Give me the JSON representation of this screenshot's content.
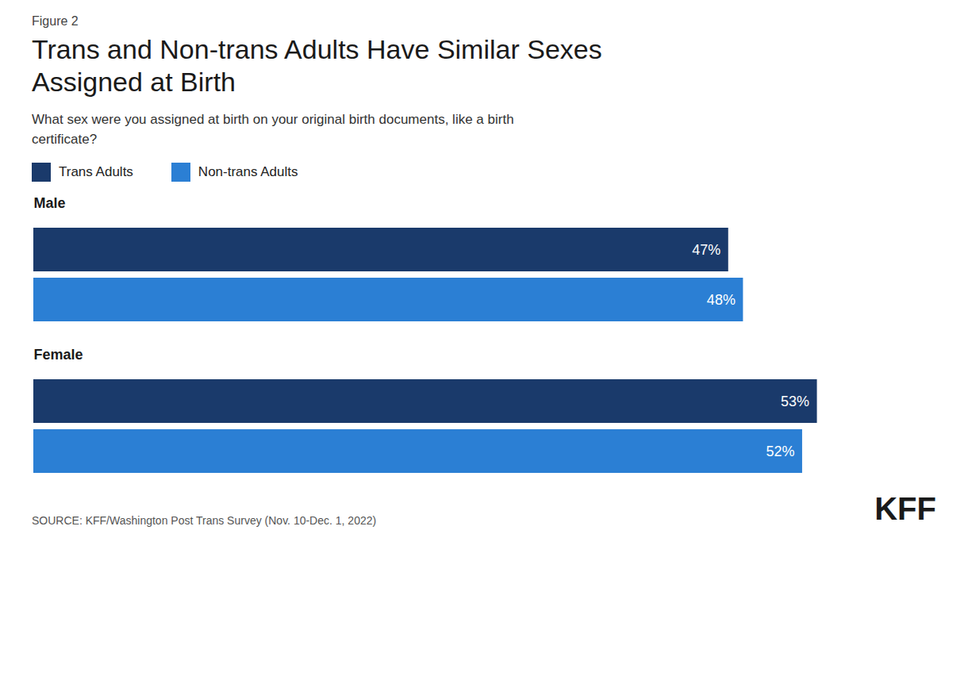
{
  "chart_data": {
    "type": "bar",
    "orientation": "horizontal",
    "figure_label": "Figure 2",
    "title": "Trans and Non-trans Adults Have Similar Sexes\nAssigned at Birth",
    "subtitle": "What sex were you assigned at birth on your original birth documents, like a birth\ncertificate?",
    "source": "SOURCE: KFF/Washington Post Trans Survey (Nov. 10-Dec. 1, 2022)",
    "annotations": [
      "KFF"
    ],
    "categories": [
      "Male",
      "Female"
    ],
    "series": [
      {
        "name": "Trans Adults",
        "color": "#1a3a6b",
        "values": [
          47,
          53
        ],
        "value_labels": [
          "47%",
          "53%"
        ]
      },
      {
        "name": "Non-trans Adults",
        "color": "#2b7fd4",
        "values": [
          48,
          52
        ],
        "value_labels": [
          "48%",
          "52%"
        ]
      }
    ],
    "xlim": [
      0,
      60
    ],
    "data_labels": true,
    "tick_labels": false,
    "grid": false,
    "legend": "top-left"
  }
}
